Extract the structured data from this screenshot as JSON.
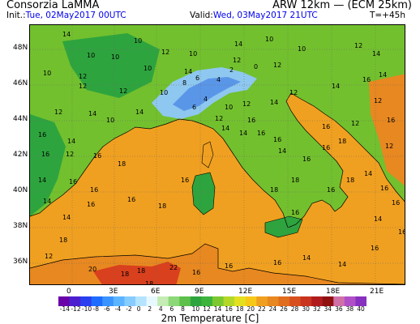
{
  "header": {
    "left_title": "Consorzia LaMMA",
    "right_title": "ARW 12km — (ECM 25km)",
    "init_prefix": "Init.:",
    "init_value": "Tue, 02May2017 00UTC",
    "valid_prefix": "Valid:",
    "valid_value": "Wed, 03May2017 21UTC",
    "lead_time": "T=+45h"
  },
  "colors": {
    "date_text": "#0000ee",
    "sea": "#f0a020",
    "land_warm": "#72c02e",
    "land_cool": "#2ea43e",
    "alpine": "#8ec8f0",
    "africa_hot": "#d8401e"
  },
  "map": {
    "lat_labels": [
      "48N",
      "46N",
      "44N",
      "42N",
      "40N",
      "38N",
      "36N"
    ],
    "lon_labels": [
      "0",
      "3E",
      "6E",
      "9E",
      "12E",
      "15E",
      "18E",
      "21E"
    ],
    "point_values": [
      {
        "v": "14"
      },
      {
        "v": "10"
      },
      {
        "v": "10"
      },
      {
        "v": "12"
      },
      {
        "v": "10"
      },
      {
        "v": "10"
      },
      {
        "v": "14"
      },
      {
        "v": "10"
      },
      {
        "v": "10"
      },
      {
        "v": "12"
      },
      {
        "v": "10"
      },
      {
        "v": "12"
      },
      {
        "v": "14"
      },
      {
        "v": "10"
      },
      {
        "v": "14"
      },
      {
        "v": "12"
      },
      {
        "v": "12"
      },
      {
        "v": "14"
      },
      {
        "v": "12"
      },
      {
        "v": "12"
      },
      {
        "v": "10"
      },
      {
        "v": "8"
      },
      {
        "v": "6"
      },
      {
        "v": "4"
      },
      {
        "v": "2"
      },
      {
        "v": "0"
      },
      {
        "v": "4"
      },
      {
        "v": "6"
      },
      {
        "v": "10"
      },
      {
        "v": "12"
      },
      {
        "v": "14"
      },
      {
        "v": "12"
      },
      {
        "v": "14"
      },
      {
        "v": "16"
      },
      {
        "v": "12"
      },
      {
        "v": "14"
      },
      {
        "v": "14"
      },
      {
        "v": "10"
      },
      {
        "v": "12"
      },
      {
        "v": "16"
      },
      {
        "v": "14"
      },
      {
        "v": "16"
      },
      {
        "v": "14"
      },
      {
        "v": "16"
      },
      {
        "v": "16"
      },
      {
        "v": "18"
      },
      {
        "v": "16"
      },
      {
        "v": "14"
      },
      {
        "v": "16"
      },
      {
        "v": "12"
      },
      {
        "v": "16"
      },
      {
        "v": "18"
      },
      {
        "v": "16"
      },
      {
        "v": "14"
      },
      {
        "v": "16"
      },
      {
        "v": "12"
      },
      {
        "v": "12"
      },
      {
        "v": "16"
      },
      {
        "v": "14"
      },
      {
        "v": "16"
      },
      {
        "v": "16"
      },
      {
        "v": "16"
      },
      {
        "v": "16"
      },
      {
        "v": "18"
      },
      {
        "v": "16"
      },
      {
        "v": "18"
      },
      {
        "v": "18"
      },
      {
        "v": "16"
      },
      {
        "v": "16"
      },
      {
        "v": "18"
      },
      {
        "v": "14"
      },
      {
        "v": "16"
      },
      {
        "v": "18"
      },
      {
        "v": "20"
      },
      {
        "v": "18"
      },
      {
        "v": "18"
      },
      {
        "v": "22"
      },
      {
        "v": "18"
      },
      {
        "v": "20"
      },
      {
        "v": "18"
      },
      {
        "v": "18"
      },
      {
        "v": "16"
      },
      {
        "v": "16"
      },
      {
        "v": "16"
      },
      {
        "v": "14"
      },
      {
        "v": "14"
      },
      {
        "v": "16"
      },
      {
        "v": "14"
      },
      {
        "v": "16"
      },
      {
        "v": "12"
      },
      {
        "v": "14"
      },
      {
        "v": "14"
      },
      {
        "v": "16"
      },
      {
        "v": "12"
      }
    ]
  },
  "colorbar": {
    "labels": [
      "-14",
      "-12",
      "-10",
      "-8",
      "-6",
      "-4",
      "-2",
      "0",
      "2",
      "4",
      "6",
      "8",
      "10",
      "12",
      "14",
      "16",
      "18",
      "20",
      "22",
      "24",
      "26",
      "28",
      "30",
      "32",
      "34",
      "36",
      "38",
      "40"
    ],
    "colors": [
      "#6a00a8",
      "#4b1fd0",
      "#2a40f0",
      "#1e6cff",
      "#3a94ff",
      "#5ab4ff",
      "#86ccff",
      "#b4e4ff",
      "#e8f8ff",
      "#c4ecb4",
      "#8cd878",
      "#5cc04a",
      "#2ea43e",
      "#3cb43c",
      "#7cc830",
      "#b4d828",
      "#e4e020",
      "#f8c818",
      "#f0a020",
      "#e88820",
      "#e06c1e",
      "#d8501e",
      "#c8341e",
      "#b01c1e",
      "#901010",
      "#d070a8",
      "#b050c8",
      "#8830c0"
    ],
    "title": "2m Temperature [C]"
  }
}
